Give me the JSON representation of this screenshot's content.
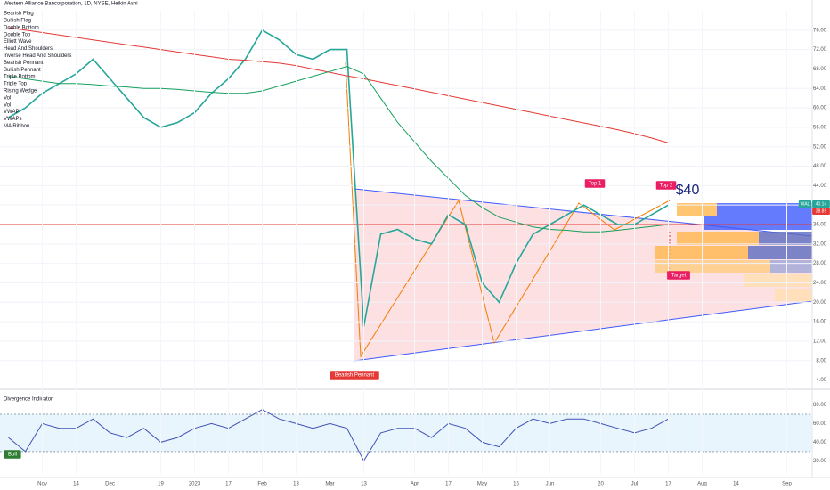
{
  "chart_data": [
    {
      "type": "line",
      "title": "Western Alliance Bancorporation, 1D, NYSE, Heikin Ashi",
      "legend_items": [
        "Bearish Flag",
        "Bullish Flag",
        "Double Bottom",
        "Double Top",
        "Elliott Wave",
        "Head And Shoulders",
        "Inverse Head And Shoulders",
        "Bearish Pennant",
        "Bullish Pennant",
        "Triple Bottom",
        "Triple Top",
        "Rising Wedge",
        "Vol",
        "Vol",
        "VWAP",
        "VWAPs",
        "MA Ribbon"
      ],
      "annotations": [
        "Bearish Pennant",
        "Top 1",
        "Top 2",
        "$40",
        "Target"
      ],
      "symbol": "WAL",
      "price_labels": [
        "40.14",
        "38.89"
      ],
      "hline": 36,
      "categories": [
        null,
        null,
        "Nov",
        null,
        "14",
        null,
        "Dec",
        null,
        null,
        "19",
        null,
        "2023",
        null,
        "17",
        null,
        "Feb",
        null,
        "13",
        null,
        "Mar",
        null,
        "13",
        null,
        null,
        "Apr",
        null,
        "17",
        null,
        "May",
        null,
        "15",
        null,
        "Jun",
        null,
        null,
        "20",
        null,
        "Jul",
        null,
        "17",
        null,
        "Aug",
        null,
        "14",
        null,
        null,
        "Sep",
        null
      ],
      "series": [
        {
          "color": "#26a69a",
          "values": [
            58,
            60,
            63,
            65,
            67,
            70,
            66,
            62,
            58,
            56,
            57,
            59,
            63,
            66,
            70,
            76,
            74,
            71,
            70,
            72,
            72,
            15,
            34,
            35,
            33,
            32,
            38,
            36,
            24,
            20,
            28,
            34,
            36,
            38,
            40,
            38,
            36,
            36,
            38,
            40,
            null,
            null,
            null,
            null,
            null,
            null,
            null,
            null
          ]
        },
        {
          "color": "#e53935",
          "values": [
            76.5,
            76,
            75.5,
            75,
            74.5,
            74,
            73.5,
            73,
            72.5,
            72,
            71.5,
            71,
            70.5,
            70,
            69.8,
            69.5,
            69.2,
            68.7,
            68,
            67.3,
            66.6,
            66,
            65.3,
            64.6,
            63.9,
            63.2,
            62.5,
            61.8,
            61.1,
            60.4,
            59.7,
            59,
            58.3,
            57.6,
            56.9,
            56.2,
            55.5,
            54.7,
            53.8,
            52.8,
            null,
            null,
            null,
            null,
            null,
            null,
            null,
            null
          ]
        },
        {
          "color": "#16a05d",
          "values": [
            66.5,
            66,
            65.5,
            65,
            65,
            64.8,
            64.5,
            64.3,
            64,
            64,
            63.8,
            63.5,
            63.2,
            63,
            63,
            63.5,
            64.5,
            65.5,
            66.5,
            67.5,
            68.5,
            67,
            62,
            57,
            53,
            49,
            45.5,
            42,
            39.5,
            37.5,
            36.5,
            35.5,
            35,
            34.8,
            34.5,
            34.5,
            34.8,
            35.2,
            35.6,
            36,
            null,
            null,
            null,
            null,
            null,
            null,
            null,
            null
          ]
        }
      ],
      "ylim": [
        3,
        80
      ],
      "yticks": [
        {
          "value": 76,
          "label": "76.00"
        },
        {
          "value": 72,
          "label": "72.00"
        },
        {
          "value": 68,
          "label": "68.00"
        },
        {
          "value": 64,
          "label": "64.00"
        },
        {
          "value": 60,
          "label": "60.00"
        },
        {
          "value": 56,
          "label": "56.00"
        },
        {
          "value": 52,
          "label": "52.00"
        },
        {
          "value": 48,
          "label": "48.00"
        },
        {
          "value": 44,
          "label": "44.00"
        },
        {
          "value": 40,
          "label": "40.00"
        },
        {
          "value": 36,
          "label": "36.00"
        },
        {
          "value": 32,
          "label": "32.00"
        },
        {
          "value": 28,
          "label": "28.00"
        },
        {
          "value": 24,
          "label": "24.00"
        },
        {
          "value": 20,
          "label": "20.00"
        },
        {
          "value": 16,
          "label": "16.00"
        },
        {
          "value": 12,
          "label": "12.00"
        },
        {
          "value": 8,
          "label": "8.00"
        },
        {
          "value": 4,
          "label": "4.00"
        }
      ],
      "grid": true
    },
    {
      "type": "line",
      "title": "Divergence Indicator",
      "annotations": [
        "Bull"
      ],
      "band": [
        30,
        70
      ],
      "series": [
        {
          "color": "#3f51b5",
          "values": [
            45,
            30,
            60,
            55,
            55,
            65,
            50,
            45,
            55,
            40,
            45,
            55,
            60,
            55,
            65,
            75,
            65,
            60,
            55,
            60,
            55,
            20,
            50,
            55,
            55,
            45,
            60,
            55,
            40,
            35,
            55,
            65,
            60,
            65,
            65,
            60,
            55,
            50,
            55,
            65,
            null,
            null,
            null,
            null,
            null,
            null,
            null,
            null
          ]
        }
      ],
      "ylim": [
        6,
        90
      ],
      "yticks": [
        {
          "value": 80,
          "label": "80.00"
        },
        {
          "value": 60,
          "label": "60.00"
        },
        {
          "value": 40,
          "label": "40.00"
        },
        {
          "value": 20,
          "label": "20.00"
        }
      ],
      "grid": false
    }
  ]
}
